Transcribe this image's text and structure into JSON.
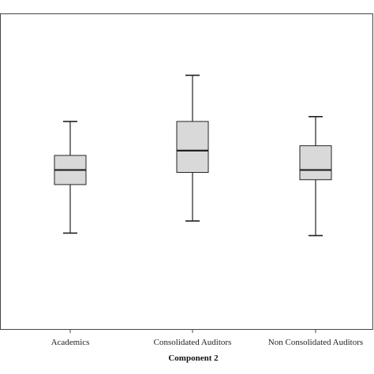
{
  "chart_data": {
    "type": "boxplot",
    "title": "",
    "xlabel": "Component 2",
    "ylabel": "",
    "categories": [
      "Academics",
      "Consolidated Auditors",
      "Non Consolidated Auditors"
    ],
    "boxes": [
      {
        "category": "Academics",
        "whisker_low": 0.095,
        "q1": 0.295,
        "median": 0.355,
        "q3": 0.415,
        "whisker_high": 0.555
      },
      {
        "category": "Consolidated Auditors",
        "whisker_low": 0.145,
        "q1": 0.345,
        "median": 0.435,
        "q3": 0.555,
        "whisker_high": 0.745
      },
      {
        "category": "Non Consolidated Auditors",
        "whisker_low": 0.085,
        "q1": 0.315,
        "median": 0.355,
        "q3": 0.455,
        "whisker_high": 0.575
      }
    ],
    "ylim": [
      -0.3,
      1.0
    ],
    "grid": false,
    "legend": "none",
    "colors": {
      "box_fill": "#d9d9d9",
      "line": "#222222",
      "frame": "#444444",
      "background": "#ffffff"
    }
  }
}
